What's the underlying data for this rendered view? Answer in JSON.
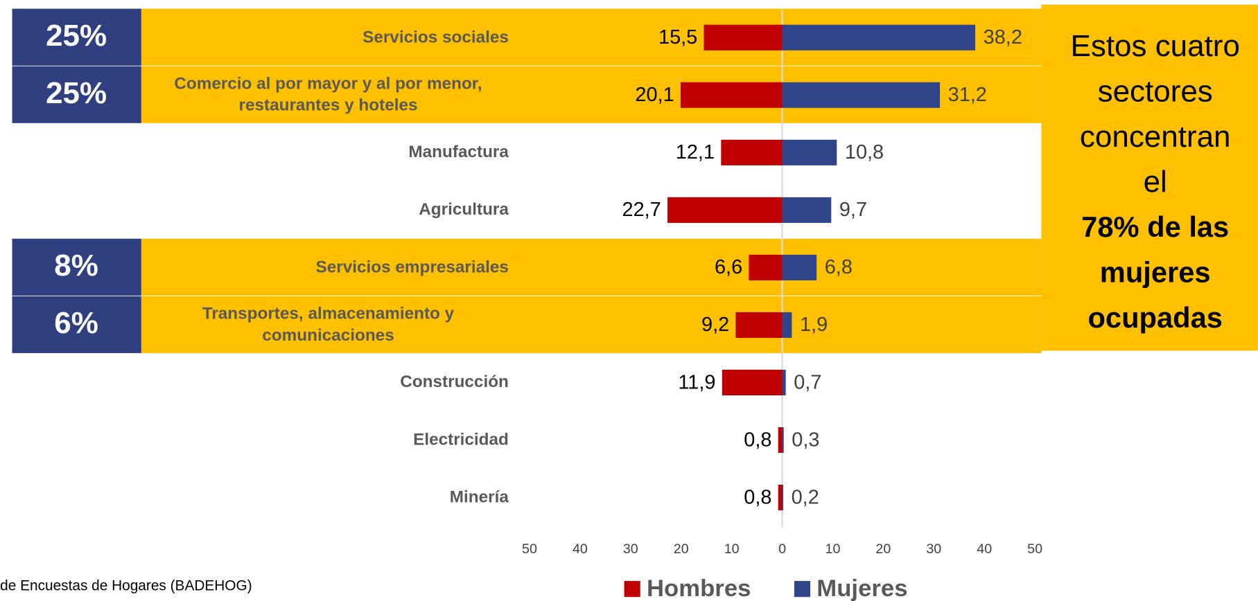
{
  "chart_data": {
    "type": "butterfly",
    "categories": [
      "Servicios sociales",
      "Comercio al por mayor y al por menor, restaurantes y hoteles",
      "Manufactura",
      "Agricultura",
      "Servicios empresariales",
      "Transportes, almacenamiento y comunicaciones",
      "Construcción",
      "Electricidad",
      "Minería"
    ],
    "series": [
      {
        "name": "Hombres",
        "color": "#c00000",
        "side": "left",
        "values": [
          15.5,
          20.1,
          12.1,
          22.7,
          6.6,
          9.2,
          11.9,
          0.8,
          0.8
        ],
        "value_labels": [
          "15,5",
          "20,1",
          "12,1",
          "22,7",
          "6,6",
          "9,2",
          "11,9",
          "0,8",
          "0,8"
        ]
      },
      {
        "name": "Mujeres",
        "color": "#2f4489",
        "side": "right",
        "values": [
          38.2,
          31.2,
          10.8,
          9.7,
          6.8,
          1.9,
          0.7,
          0.3,
          0.2
        ],
        "value_labels": [
          "38,2",
          "31,2",
          "10,8",
          "9,7",
          "6,8",
          "1,9",
          "0,7",
          "0,3",
          "0,2"
        ]
      }
    ],
    "xlim": [
      -50,
      50
    ],
    "xticks": [
      {
        "value": -50,
        "label": "50"
      },
      {
        "value": -40,
        "label": "40"
      },
      {
        "value": -30,
        "label": "30"
      },
      {
        "value": -20,
        "label": "20"
      },
      {
        "value": -10,
        "label": "10"
      },
      0,
      10,
      20,
      30,
      40,
      50
    ],
    "highlight_labels": [
      "25%",
      "25%",
      null,
      null,
      "8%",
      "6%",
      null,
      null,
      null
    ],
    "highlight_color": "#ffc000",
    "annotation": {
      "lines": [
        "Estos cuatro",
        "sectores",
        "concentran",
        "el"
      ],
      "bold_lines": [
        "78% de las",
        "mujeres",
        "ocupadas"
      ]
    },
    "source": "de Encuestas de Hogares (BADEHOG)"
  }
}
